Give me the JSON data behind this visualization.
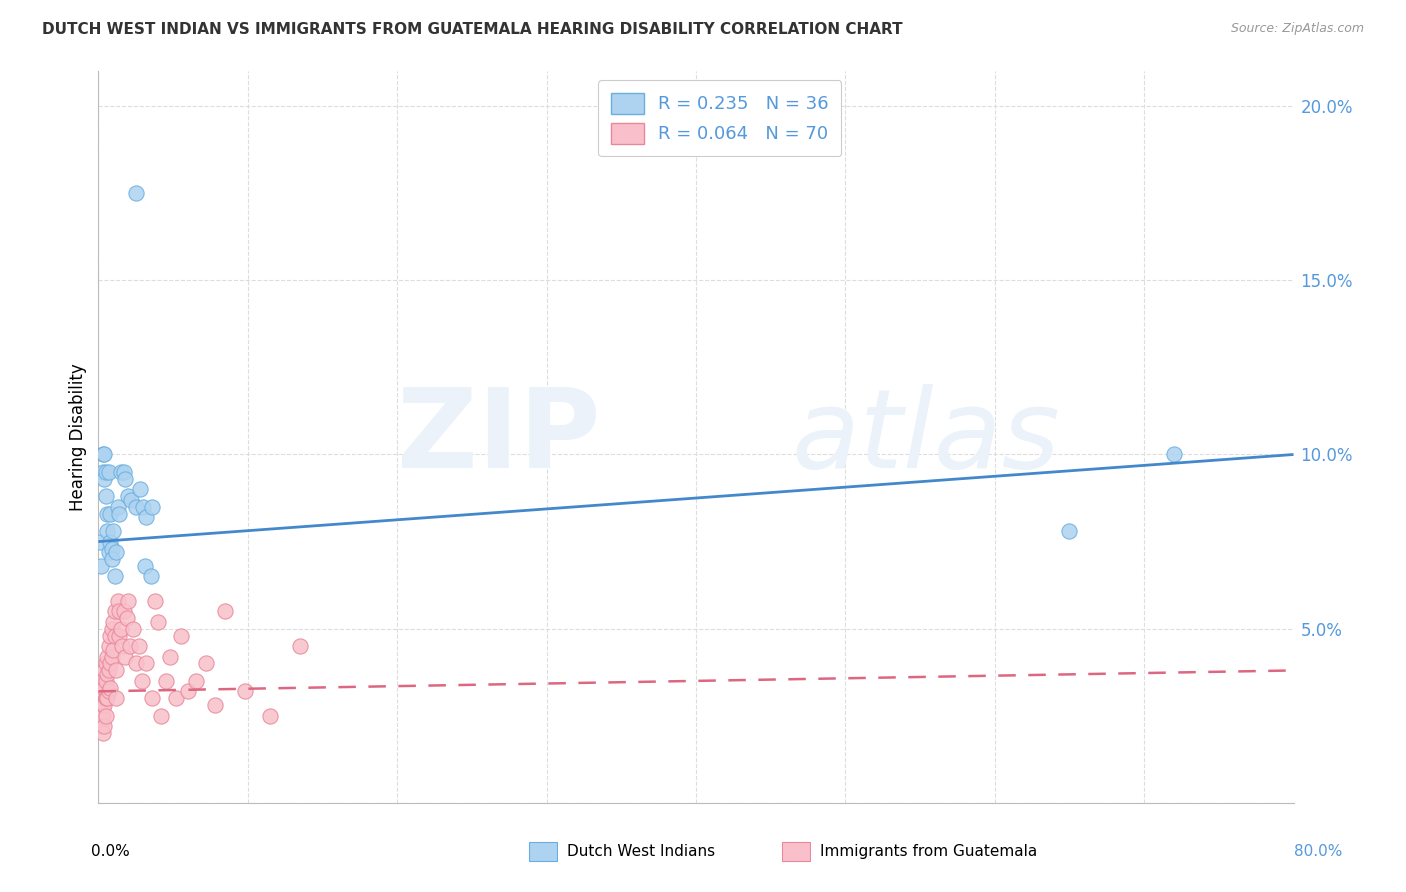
{
  "title": "DUTCH WEST INDIAN VS IMMIGRANTS FROM GUATEMALA HEARING DISABILITY CORRELATION CHART",
  "source": "Source: ZipAtlas.com",
  "ylabel": "Hearing Disability",
  "legend_blue_label": "Dutch West Indians",
  "legend_pink_label": "Immigrants from Guatemala",
  "legend_text_blue": "R = 0.235   N = 36",
  "legend_text_pink": "R = 0.064   N = 70",
  "blue_color": "#ADD3F0",
  "blue_edge_color": "#6AAEE0",
  "blue_line_color": "#4488CC",
  "pink_color": "#F9C0CB",
  "pink_edge_color": "#E88898",
  "pink_line_color": "#DD6680",
  "background_color": "#FFFFFF",
  "grid_color": "#DDDDDD",
  "right_axis_color": "#5599DD",
  "title_color": "#333333",
  "source_color": "#999999",
  "watermark_color": "#EBF2FA",
  "yticks_right": [
    0.0,
    0.05,
    0.1,
    0.15,
    0.2
  ],
  "ytick_labels_right": [
    "",
    "5.0%",
    "10.0%",
    "15.0%",
    "20.0%"
  ],
  "xlim": [
    0.0,
    0.8
  ],
  "ylim": [
    0.0,
    0.21
  ],
  "blue_line_start": 0.075,
  "blue_line_end": 0.1,
  "pink_line_start": 0.032,
  "pink_line_end": 0.038,
  "blue_x": [
    0.001,
    0.002,
    0.003,
    0.003,
    0.004,
    0.004,
    0.005,
    0.005,
    0.006,
    0.006,
    0.007,
    0.007,
    0.008,
    0.008,
    0.009,
    0.009,
    0.01,
    0.011,
    0.012,
    0.013,
    0.014,
    0.015,
    0.017,
    0.018,
    0.02,
    0.022,
    0.025,
    0.028,
    0.031,
    0.035,
    0.025,
    0.03,
    0.032,
    0.036,
    0.65,
    0.72
  ],
  "blue_y": [
    0.075,
    0.068,
    0.095,
    0.1,
    0.093,
    0.1,
    0.088,
    0.095,
    0.083,
    0.078,
    0.095,
    0.072,
    0.083,
    0.075,
    0.073,
    0.07,
    0.078,
    0.065,
    0.072,
    0.085,
    0.083,
    0.095,
    0.095,
    0.093,
    0.088,
    0.087,
    0.085,
    0.09,
    0.068,
    0.065,
    0.175,
    0.085,
    0.082,
    0.085,
    0.078,
    0.1
  ],
  "pink_x": [
    0.001,
    0.001,
    0.001,
    0.001,
    0.002,
    0.002,
    0.002,
    0.002,
    0.002,
    0.003,
    0.003,
    0.003,
    0.003,
    0.003,
    0.004,
    0.004,
    0.004,
    0.004,
    0.005,
    0.005,
    0.005,
    0.005,
    0.006,
    0.006,
    0.006,
    0.007,
    0.007,
    0.007,
    0.008,
    0.008,
    0.008,
    0.009,
    0.009,
    0.01,
    0.01,
    0.011,
    0.011,
    0.012,
    0.012,
    0.013,
    0.014,
    0.014,
    0.015,
    0.016,
    0.017,
    0.018,
    0.019,
    0.02,
    0.021,
    0.023,
    0.025,
    0.027,
    0.029,
    0.032,
    0.036,
    0.038,
    0.04,
    0.042,
    0.045,
    0.048,
    0.052,
    0.055,
    0.06,
    0.065,
    0.072,
    0.078,
    0.085,
    0.098,
    0.115,
    0.135
  ],
  "pink_y": [
    0.03,
    0.028,
    0.026,
    0.025,
    0.033,
    0.03,
    0.028,
    0.025,
    0.022,
    0.035,
    0.032,
    0.028,
    0.025,
    0.02,
    0.038,
    0.033,
    0.028,
    0.022,
    0.04,
    0.035,
    0.03,
    0.025,
    0.042,
    0.037,
    0.03,
    0.045,
    0.038,
    0.032,
    0.048,
    0.04,
    0.033,
    0.05,
    0.042,
    0.052,
    0.044,
    0.055,
    0.048,
    0.038,
    0.03,
    0.058,
    0.055,
    0.048,
    0.05,
    0.045,
    0.055,
    0.042,
    0.053,
    0.058,
    0.045,
    0.05,
    0.04,
    0.045,
    0.035,
    0.04,
    0.03,
    0.058,
    0.052,
    0.025,
    0.035,
    0.042,
    0.03,
    0.048,
    0.032,
    0.035,
    0.04,
    0.028,
    0.055,
    0.032,
    0.025,
    0.045
  ]
}
